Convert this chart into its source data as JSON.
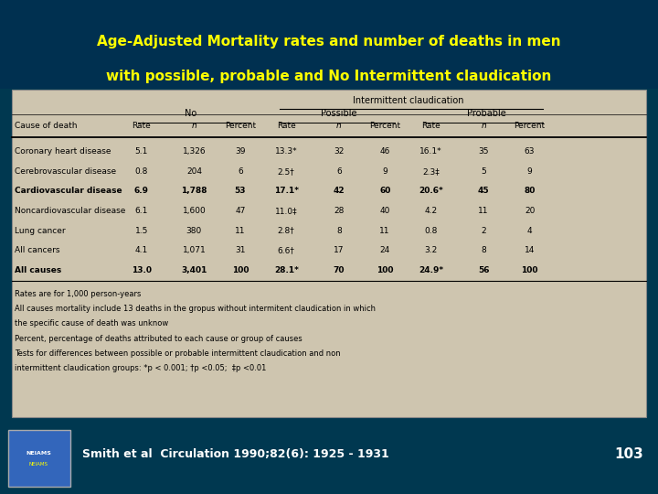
{
  "title_line1": "Age-Adjusted Mortality rates and number of deaths in men",
  "title_line2": "with possible, probable and No Intermittent claudication",
  "title_color": "#FFFF00",
  "title_bg": "#003050",
  "outer_bg": "#003850",
  "table_bg": "#cec5af",
  "col_headers": [
    "Cause of death",
    "Rate",
    "n",
    "Percent",
    "Rate",
    "n",
    "Percent",
    "Rate",
    "n",
    "Percent"
  ],
  "group_headers": [
    "No",
    "Possible",
    "Probable"
  ],
  "super_header": "Intermittent claudication",
  "rows": [
    [
      "Coronary heart disease",
      "5.1",
      "1,326",
      "39",
      "13.3*",
      "32",
      "46",
      "16.1*",
      "35",
      "63"
    ],
    [
      "Cerebrovascular disease",
      "0.8",
      "204",
      "6",
      "2.5†",
      "6",
      "9",
      "2.3‡",
      "5",
      "9"
    ],
    [
      "Cardiovascular disease",
      "6.9",
      "1,788",
      "53",
      "17.1*",
      "42",
      "60",
      "20.6*",
      "45",
      "80"
    ],
    [
      "Noncardiovascular disease",
      "6.1",
      "1,600",
      "47",
      "11.0‡",
      "28",
      "40",
      "4.2",
      "11",
      "20"
    ],
    [
      "Lung cancer",
      "1.5",
      "380",
      "11",
      "2.8†",
      "8",
      "11",
      "0.8",
      "2",
      "4"
    ],
    [
      "All cancers",
      "4.1",
      "1,071",
      "31",
      "6.6†",
      "17",
      "24",
      "3.2",
      "8",
      "14"
    ],
    [
      "All causes",
      "13.0",
      "3,401",
      "100",
      "28.1*",
      "70",
      "100",
      "24.9*",
      "56",
      "100"
    ]
  ],
  "footnotes": [
    "Rates are for 1,000 person-years",
    "All causes mortality include 13 deaths in the gropus without intermitent claudication in which",
    "the specific cause of death was unknow",
    "Percent, percentage of deaths attributed to each cause or group of causes",
    "Tests for differences between possible or probable intermittent claudication and non",
    "intermittent claudication groups: *p < 0.001; †p <0.05;  ‡p <0.01"
  ],
  "citation": "Smith et al  Circulation 1990;82(6): 1925 - 1931",
  "page_num": "103"
}
